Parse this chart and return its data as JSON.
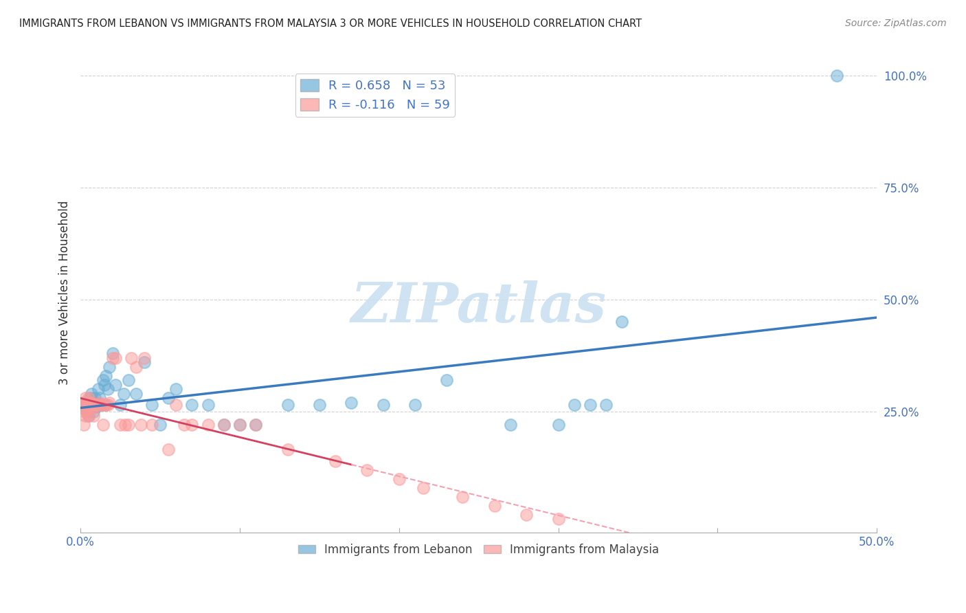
{
  "title": "IMMIGRANTS FROM LEBANON VS IMMIGRANTS FROM MALAYSIA 3 OR MORE VEHICLES IN HOUSEHOLD CORRELATION CHART",
  "source": "Source: ZipAtlas.com",
  "ylabel": "3 or more Vehicles in Household",
  "xlim": [
    0.0,
    0.5
  ],
  "ylim": [
    -0.02,
    1.05
  ],
  "xticks": [
    0.0,
    0.1,
    0.2,
    0.3,
    0.4,
    0.5
  ],
  "xticklabels_bottom": [
    "0.0%",
    "",
    "",
    "",
    "",
    "50.0%"
  ],
  "yticks": [
    0.25,
    0.5,
    0.75,
    1.0
  ],
  "yticklabels": [
    "25.0%",
    "50.0%",
    "75.0%",
    "100.0%"
  ],
  "lebanon_color": "#6baed6",
  "malaysia_color": "#fb9a99",
  "lebanon_line_color": "#3a7abf",
  "malaysia_line_solid_color": "#d44060",
  "malaysia_line_dash_color": "#f4a0b0",
  "lebanon_R": 0.658,
  "lebanon_N": 53,
  "malaysia_R": -0.116,
  "malaysia_N": 59,
  "watermark": "ZIPatlas",
  "background_color": "#ffffff",
  "grid_color": "#cccccc",
  "lebanon_x": [
    0.002,
    0.003,
    0.004,
    0.005,
    0.005,
    0.006,
    0.006,
    0.007,
    0.007,
    0.008,
    0.008,
    0.009,
    0.009,
    0.01,
    0.01,
    0.011,
    0.012,
    0.013,
    0.014,
    0.015,
    0.015,
    0.016,
    0.017,
    0.018,
    0.02,
    0.022,
    0.025,
    0.027,
    0.03,
    0.035,
    0.04,
    0.045,
    0.05,
    0.055,
    0.06,
    0.07,
    0.08,
    0.09,
    0.1,
    0.11,
    0.13,
    0.15,
    0.17,
    0.19,
    0.21,
    0.23,
    0.27,
    0.3,
    0.31,
    0.32,
    0.33,
    0.34,
    0.475
  ],
  "lebanon_y": [
    0.27,
    0.26,
    0.25,
    0.24,
    0.265,
    0.26,
    0.28,
    0.27,
    0.29,
    0.25,
    0.27,
    0.265,
    0.28,
    0.27,
    0.26,
    0.3,
    0.28,
    0.265,
    0.32,
    0.31,
    0.265,
    0.33,
    0.3,
    0.35,
    0.38,
    0.31,
    0.265,
    0.29,
    0.32,
    0.29,
    0.36,
    0.265,
    0.22,
    0.28,
    0.3,
    0.265,
    0.265,
    0.22,
    0.22,
    0.22,
    0.265,
    0.265,
    0.27,
    0.265,
    0.265,
    0.32,
    0.22,
    0.22,
    0.265,
    0.265,
    0.265,
    0.45,
    1.0
  ],
  "malaysia_x": [
    0.001,
    0.002,
    0.002,
    0.003,
    0.003,
    0.003,
    0.004,
    0.004,
    0.004,
    0.005,
    0.005,
    0.005,
    0.005,
    0.006,
    0.006,
    0.007,
    0.007,
    0.008,
    0.008,
    0.008,
    0.009,
    0.009,
    0.01,
    0.01,
    0.011,
    0.012,
    0.013,
    0.014,
    0.015,
    0.016,
    0.017,
    0.018,
    0.02,
    0.022,
    0.025,
    0.028,
    0.03,
    0.032,
    0.035,
    0.038,
    0.04,
    0.045,
    0.055,
    0.06,
    0.065,
    0.07,
    0.08,
    0.09,
    0.1,
    0.11,
    0.13,
    0.16,
    0.18,
    0.2,
    0.215,
    0.24,
    0.26,
    0.28,
    0.3
  ],
  "malaysia_y": [
    0.27,
    0.22,
    0.25,
    0.24,
    0.265,
    0.28,
    0.265,
    0.25,
    0.27,
    0.24,
    0.265,
    0.26,
    0.28,
    0.27,
    0.265,
    0.265,
    0.27,
    0.26,
    0.265,
    0.24,
    0.265,
    0.265,
    0.265,
    0.265,
    0.265,
    0.27,
    0.265,
    0.22,
    0.265,
    0.265,
    0.265,
    0.27,
    0.37,
    0.37,
    0.22,
    0.22,
    0.22,
    0.37,
    0.35,
    0.22,
    0.37,
    0.22,
    0.165,
    0.265,
    0.22,
    0.22,
    0.22,
    0.22,
    0.22,
    0.22,
    0.165,
    0.14,
    0.12,
    0.1,
    0.08,
    0.06,
    0.04,
    0.02,
    0.01
  ]
}
